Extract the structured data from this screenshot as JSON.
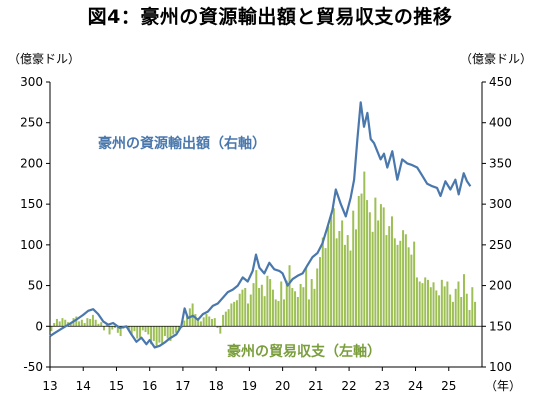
{
  "chart_data": {
    "type": "bar+line",
    "title": "図4：豪州の資源輸出額と貿易収支の推移",
    "y_left_unit": "（億豪ドル）",
    "y_right_unit": "（億豪ドル）",
    "x_unit": "（年）",
    "x_tick_labels": [
      "13",
      "14",
      "15",
      "16",
      "17",
      "18",
      "19",
      "20",
      "21",
      "22",
      "23",
      "24",
      "25"
    ],
    "y_left_ticks": [
      "300",
      "250",
      "200",
      "150",
      "100",
      "50",
      "0",
      "-50"
    ],
    "y_right_ticks": [
      "450",
      "400",
      "350",
      "300",
      "250",
      "200",
      "150",
      "100"
    ],
    "ylim_left": [
      -50,
      300
    ],
    "ylim_right": [
      100,
      450
    ],
    "x_range": [
      2013.0,
      2026.0
    ],
    "colors": {
      "line": "#4a78ad",
      "bars": "#9dbf55",
      "line_label": "#4a78ad",
      "bar_label": "#7a9e3c"
    },
    "grid": false,
    "series": [
      {
        "name": "豪州の資源輸出額（右軸）",
        "type": "line",
        "axis": "right",
        "points": [
          [
            2013.0,
            138
          ],
          [
            2013.15,
            142
          ],
          [
            2013.35,
            147
          ],
          [
            2013.55,
            152
          ],
          [
            2013.75,
            157
          ],
          [
            2014.0,
            164
          ],
          [
            2014.15,
            169
          ],
          [
            2014.3,
            171
          ],
          [
            2014.45,
            165
          ],
          [
            2014.6,
            156
          ],
          [
            2014.75,
            152
          ],
          [
            2014.9,
            154
          ],
          [
            2015.1,
            148
          ],
          [
            2015.3,
            150
          ],
          [
            2015.45,
            140
          ],
          [
            2015.6,
            131
          ],
          [
            2015.75,
            136
          ],
          [
            2015.9,
            128
          ],
          [
            2016.0,
            133
          ],
          [
            2016.15,
            124
          ],
          [
            2016.3,
            126
          ],
          [
            2016.45,
            130
          ],
          [
            2016.6,
            135
          ],
          [
            2016.8,
            140
          ],
          [
            2016.95,
            150
          ],
          [
            2017.05,
            172
          ],
          [
            2017.15,
            160
          ],
          [
            2017.3,
            163
          ],
          [
            2017.45,
            158
          ],
          [
            2017.6,
            165
          ],
          [
            2017.75,
            168
          ],
          [
            2017.9,
            175
          ],
          [
            2018.05,
            178
          ],
          [
            2018.2,
            185
          ],
          [
            2018.35,
            192
          ],
          [
            2018.5,
            195
          ],
          [
            2018.65,
            200
          ],
          [
            2018.8,
            210
          ],
          [
            2018.95,
            205
          ],
          [
            2019.1,
            218
          ],
          [
            2019.2,
            238
          ],
          [
            2019.3,
            222
          ],
          [
            2019.45,
            215
          ],
          [
            2019.6,
            228
          ],
          [
            2019.75,
            220
          ],
          [
            2019.9,
            218
          ],
          [
            2020.0,
            215
          ],
          [
            2020.15,
            200
          ],
          [
            2020.3,
            208
          ],
          [
            2020.45,
            212
          ],
          [
            2020.6,
            215
          ],
          [
            2020.75,
            225
          ],
          [
            2020.9,
            235
          ],
          [
            2021.05,
            240
          ],
          [
            2021.2,
            252
          ],
          [
            2021.35,
            272
          ],
          [
            2021.5,
            293
          ],
          [
            2021.6,
            318
          ],
          [
            2021.75,
            300
          ],
          [
            2021.9,
            285
          ],
          [
            2022.05,
            308
          ],
          [
            2022.15,
            330
          ],
          [
            2022.25,
            380
          ],
          [
            2022.35,
            425
          ],
          [
            2022.45,
            395
          ],
          [
            2022.55,
            412
          ],
          [
            2022.65,
            380
          ],
          [
            2022.75,
            375
          ],
          [
            2022.85,
            365
          ],
          [
            2022.95,
            355
          ],
          [
            2023.05,
            362
          ],
          [
            2023.15,
            345
          ],
          [
            2023.3,
            365
          ],
          [
            2023.45,
            330
          ],
          [
            2023.6,
            355
          ],
          [
            2023.75,
            350
          ],
          [
            2023.9,
            348
          ],
          [
            2024.05,
            345
          ],
          [
            2024.2,
            335
          ],
          [
            2024.35,
            325
          ],
          [
            2024.5,
            322
          ],
          [
            2024.65,
            320
          ],
          [
            2024.75,
            310
          ],
          [
            2024.9,
            328
          ],
          [
            2025.05,
            318
          ],
          [
            2025.2,
            330
          ],
          [
            2025.3,
            312
          ],
          [
            2025.45,
            338
          ],
          [
            2025.55,
            328
          ],
          [
            2025.65,
            322
          ]
        ]
      },
      {
        "name": "豪州の貿易収支（左軸）",
        "type": "bar",
        "axis": "left",
        "monthly_start": 2013.0,
        "values": [
          -6,
          4,
          9,
          6,
          10,
          8,
          5,
          3,
          10,
          12,
          6,
          8,
          4,
          10,
          9,
          14,
          8,
          3,
          5,
          -5,
          2,
          -10,
          -4,
          -2,
          -8,
          -12,
          -3,
          -1,
          -4,
          -10,
          -6,
          -15,
          -14,
          -5,
          -7,
          -10,
          -22,
          -18,
          -25,
          -20,
          -23,
          -12,
          -15,
          -18,
          -10,
          -8,
          -5,
          -2,
          7,
          12,
          22,
          28,
          15,
          10,
          6,
          11,
          15,
          12,
          9,
          10,
          -2,
          -9,
          14,
          18,
          21,
          28,
          30,
          32,
          40,
          45,
          47,
          28,
          39,
          53,
          69,
          47,
          51,
          37,
          62,
          58,
          45,
          33,
          31,
          55,
          33,
          56,
          75,
          47,
          43,
          36,
          52,
          48,
          72,
          33,
          58,
          46,
          71,
          85,
          109,
          96,
          123,
          135,
          145,
          108,
          117,
          130,
          100,
          112,
          93,
          142,
          119,
          160,
          163,
          190,
          155,
          140,
          116,
          158,
          130,
          150,
          146,
          112,
          123,
          135,
          108,
          100,
          105,
          118,
          113,
          97,
          88,
          104,
          60,
          55,
          53,
          60,
          57,
          48,
          54,
          44,
          38,
          57,
          49,
          55,
          39,
          30,
          46,
          55,
          36,
          64,
          40,
          20,
          48,
          30
        ]
      }
    ],
    "annotations": [
      {
        "text": "豪州の資源輸出額（右軸）",
        "color": "#4a78ad"
      },
      {
        "text": "豪州の貿易収支（左軸）",
        "color": "#7a9e3c"
      }
    ]
  }
}
